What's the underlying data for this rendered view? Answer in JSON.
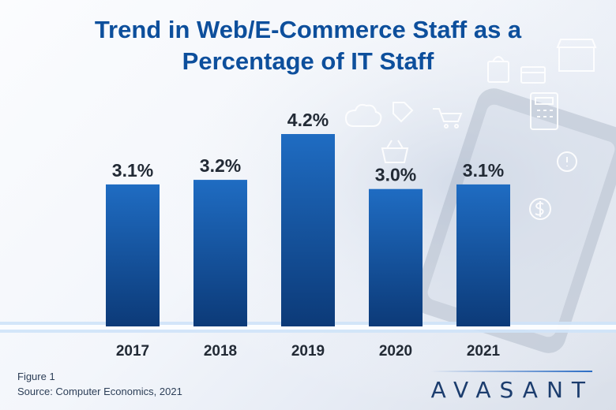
{
  "title": {
    "line1": "Trend in Web/E-Commerce Staff as a",
    "line2": "Percentage of IT Staff"
  },
  "chart_data": {
    "type": "bar",
    "categories": [
      "2017",
      "2018",
      "2019",
      "2020",
      "2021"
    ],
    "values": [
      3.1,
      3.2,
      4.2,
      3.0,
      3.1
    ],
    "data_labels": [
      "3.1%",
      "3.2%",
      "4.2%",
      "3.0%",
      "3.1%"
    ],
    "unit": "%",
    "title": "Trend in Web/E-Commerce Staff as a Percentage of IT Staff",
    "xlabel": "",
    "ylabel": "",
    "ylim": [
      0,
      4.2
    ],
    "grid": false,
    "colors": {
      "bar_top": "#1f6cc2",
      "bar_bottom": "#0c3a78",
      "labels": "#222a35"
    }
  },
  "footer": {
    "figure": "Figure 1",
    "source": "Source: Computer Economics, 2021",
    "brand": "AVASANT"
  },
  "icons": [
    "shopping-bag-icon",
    "storefront-icon",
    "credit-card-icon",
    "shopping-cart-icon",
    "shopping-basket-icon",
    "cash-register-icon",
    "dollar-icon",
    "cloud-icon",
    "price-tag-icon",
    "smartphone-icon"
  ]
}
